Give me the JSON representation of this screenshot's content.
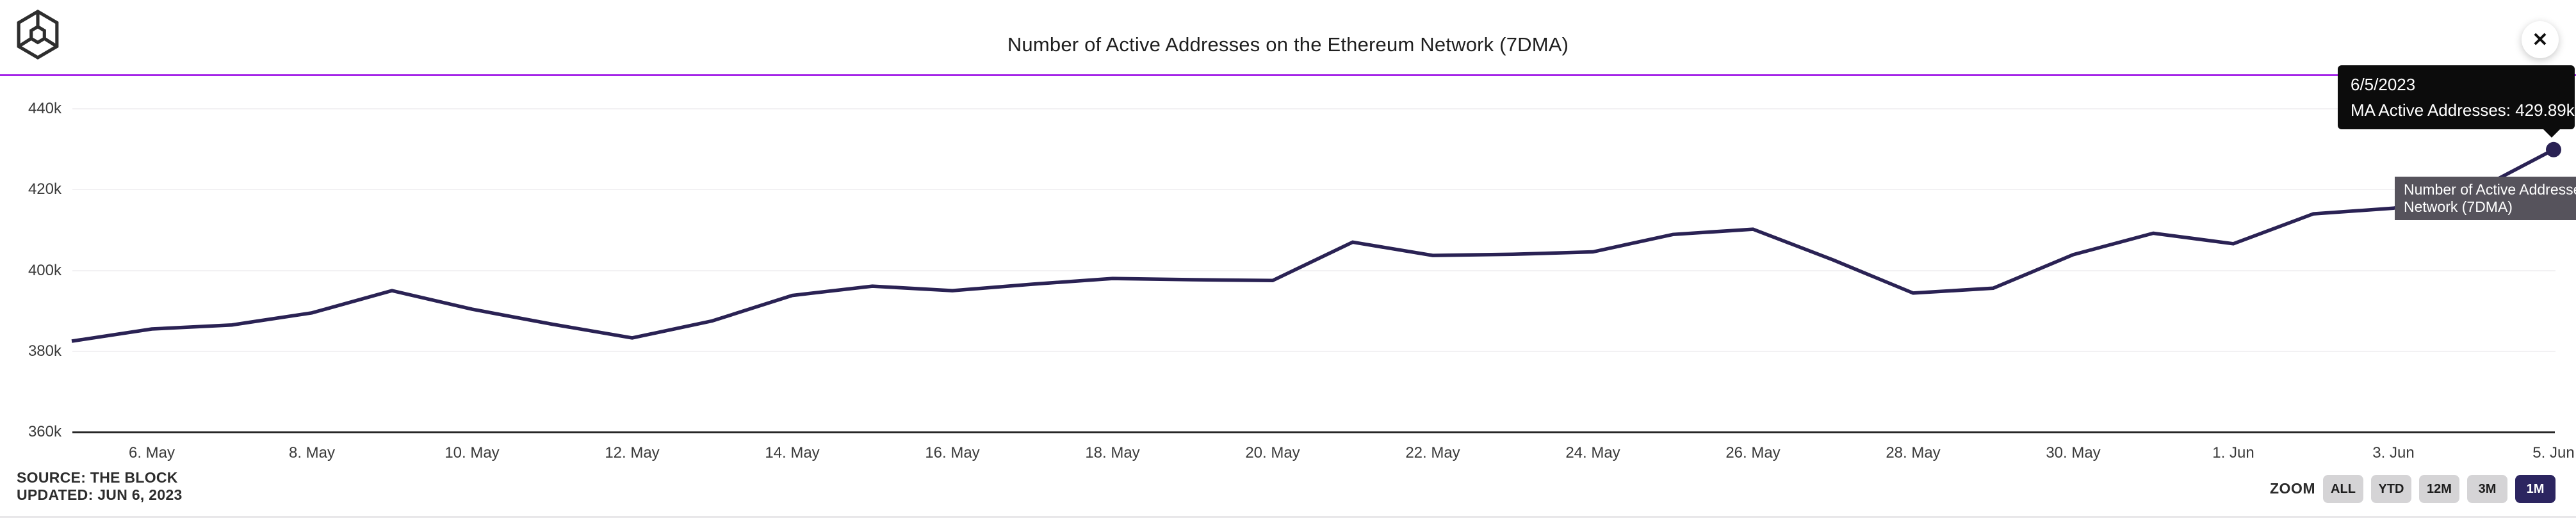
{
  "header": {
    "title": "Number of Active Addresses on the Ethereum Network (7DMA)",
    "close_label": "✕"
  },
  "chart_data": {
    "type": "line",
    "title": "Number of Active Addresses on the Ethereum Network (7DMA)",
    "x": [
      "5/5/2023",
      "5/6/2023",
      "5/7/2023",
      "5/8/2023",
      "5/9/2023",
      "5/10/2023",
      "5/11/2023",
      "5/12/2023",
      "5/13/2023",
      "5/14/2023",
      "5/15/2023",
      "5/16/2023",
      "5/17/2023",
      "5/18/2023",
      "5/19/2023",
      "5/20/2023",
      "5/21/2023",
      "5/22/2023",
      "5/23/2023",
      "5/24/2023",
      "5/25/2023",
      "5/26/2023",
      "5/27/2023",
      "5/28/2023",
      "5/29/2023",
      "5/30/2023",
      "5/31/2023",
      "6/1/2023",
      "6/2/2023",
      "6/3/2023",
      "6/4/2023",
      "6/5/2023"
    ],
    "series": [
      {
        "name": "MA Active Addresses",
        "unit": "k",
        "values": [
          382.5,
          385.5,
          386.5,
          389.5,
          395.0,
          390.4,
          386.7,
          383.3,
          387.5,
          393.8,
          396.1,
          395.0,
          396.6,
          398.0,
          397.7,
          397.5,
          407.0,
          403.7,
          404.0,
          404.6,
          408.9,
          410.2,
          402.6,
          394.4,
          395.6,
          403.9,
          409.2,
          406.6,
          414.0,
          415.4,
          419.5,
          429.89
        ]
      }
    ],
    "x_tick_labels": [
      "6. May",
      "8. May",
      "10. May",
      "12. May",
      "14. May",
      "16. May",
      "18. May",
      "20. May",
      "22. May",
      "24. May",
      "26. May",
      "28. May",
      "30. May",
      "1. Jun",
      "3. Jun",
      "5. Jun"
    ],
    "y_ticks": [
      {
        "label": "360k",
        "value": 360
      },
      {
        "label": "380k",
        "value": 380
      },
      {
        "label": "400k",
        "value": 400
      },
      {
        "label": "420k",
        "value": 420
      },
      {
        "label": "440k",
        "value": 440
      }
    ],
    "ylim": [
      360,
      440
    ],
    "grid": "horizontal",
    "legend": "none",
    "line_color": "#2a2254"
  },
  "tooltip": {
    "date": "6/5/2023",
    "value": "MA Active Addresses: 429.89k"
  },
  "series_label": {
    "line1": "Number of Active Addresses on the Ethereum",
    "line2": "Network (7DMA)"
  },
  "footer": {
    "source": "SOURCE: THE BLOCK",
    "updated": "UPDATED: JUN 6, 2023"
  },
  "zoom_controls": {
    "label": "ZOOM",
    "options": [
      {
        "label": "ALL",
        "active": false
      },
      {
        "label": "YTD",
        "active": false
      },
      {
        "label": "12M",
        "active": false
      },
      {
        "label": "3M",
        "active": false
      },
      {
        "label": "1M",
        "active": true
      }
    ]
  },
  "colors": {
    "line": "#2a2254",
    "accent_rule": "#A424E8",
    "active_button": "#2c2560",
    "inactive_button": "#d5d4d6",
    "tooltip_bg": "#0c0c0c",
    "series_label_bg": "#56535C",
    "gridline": "#f2f1f3",
    "axis": "#272727"
  }
}
